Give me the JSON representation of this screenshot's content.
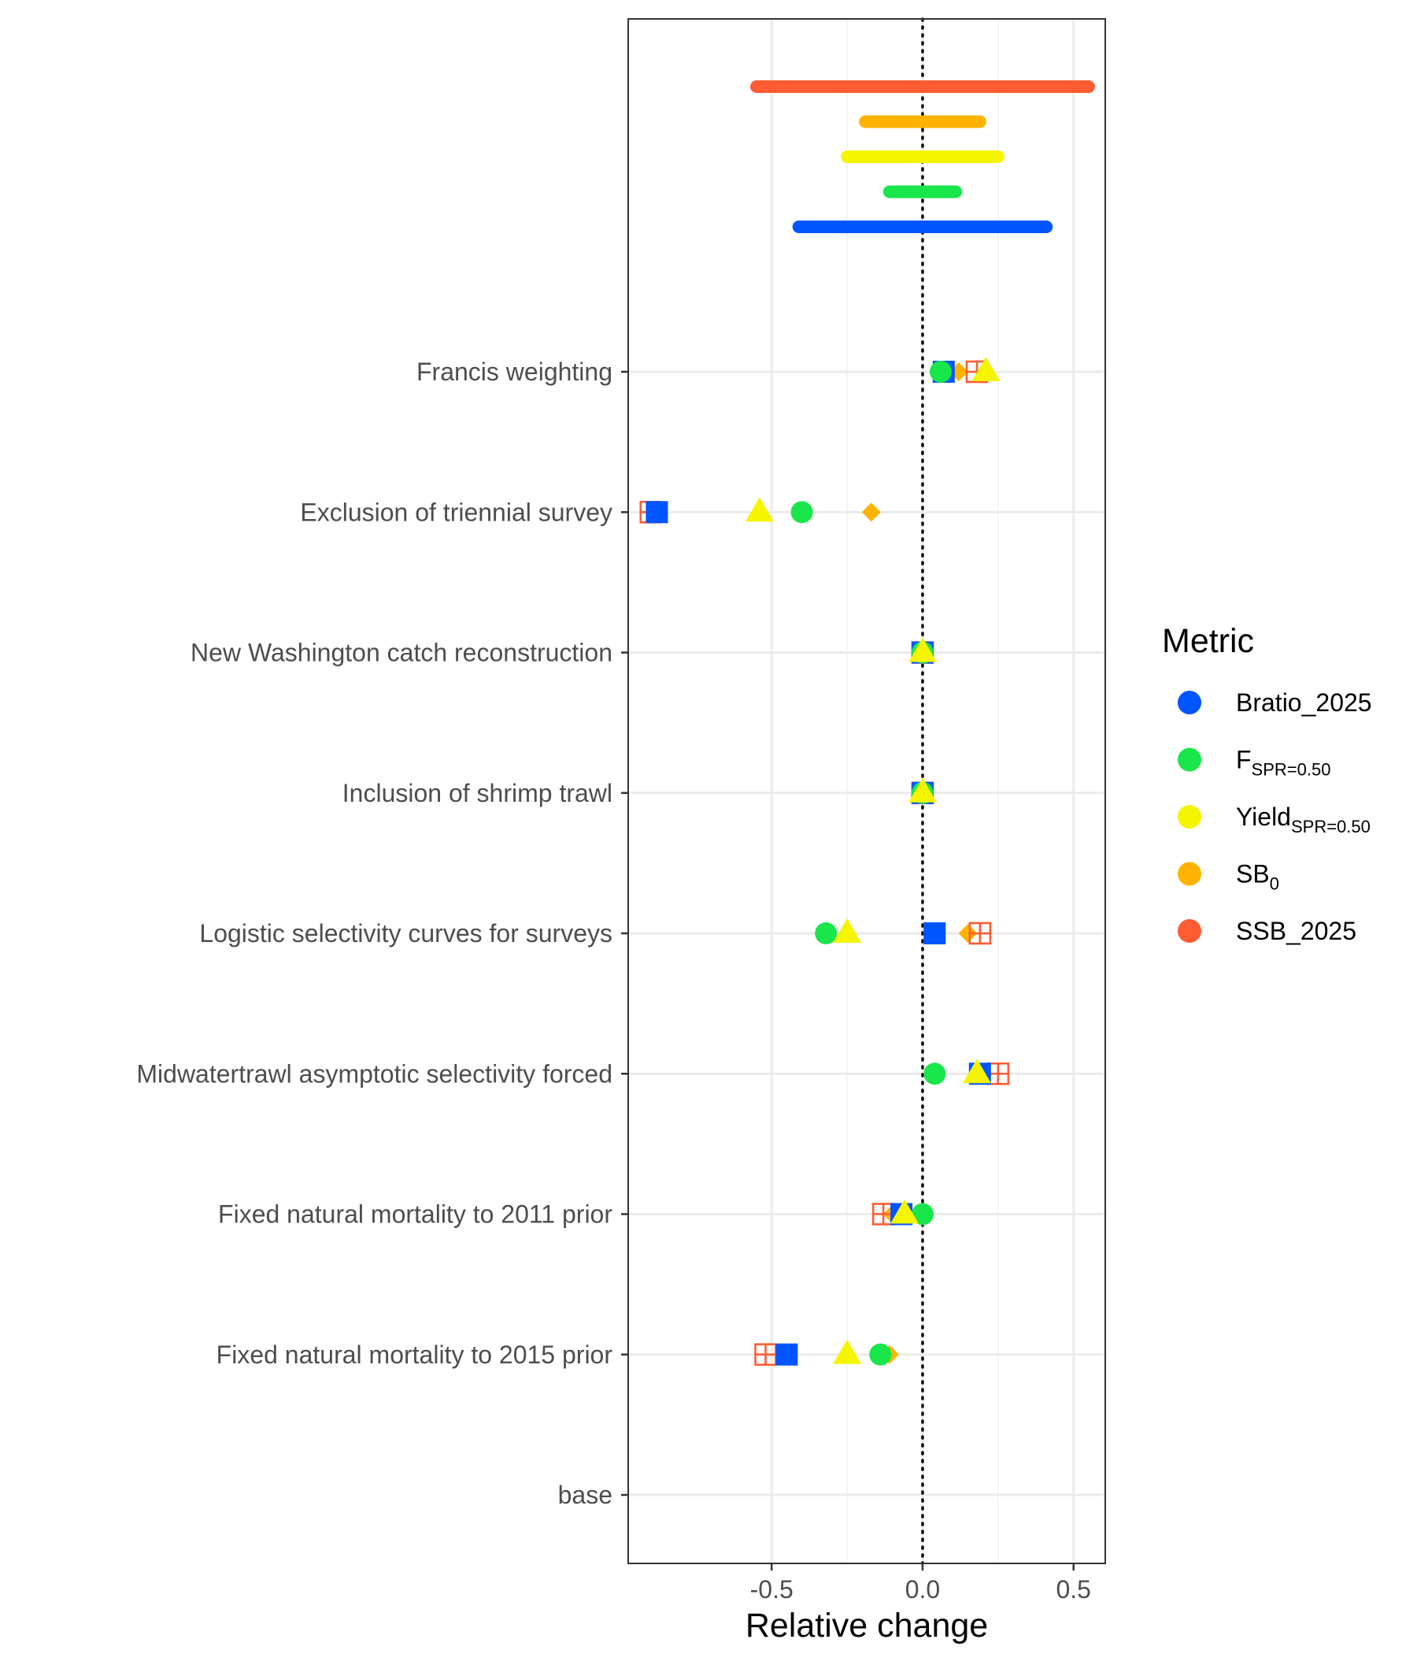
{
  "chart_data": {
    "type": "scatter",
    "xlabel": "Relative change",
    "xlim": [
      -0.975,
      0.605
    ],
    "xticks": [
      -0.5,
      0.0,
      0.5
    ],
    "xtick_labels": [
      "-0.5",
      "0.0",
      "0.5"
    ],
    "grid": true,
    "reference_line_x": 0,
    "legend_position": "right",
    "legend_title": "Metric",
    "categories": [
      "base",
      "Fixed natural mortality to 2015 prior",
      "Fixed natural mortality to 2011 prior",
      "Midwatertrawl asymptotic selectivity forced",
      "Logistic selectivity curves for surveys",
      "Inclusion of shrimp trawl",
      "New Washington catch reconstruction",
      "Exclusion of triennial survey",
      "Francis weighting"
    ],
    "series": [
      {
        "name": "Bratio_2025",
        "label_main": "Bratio_2025",
        "label_sub": "",
        "color": "#0055ff",
        "shape": "square",
        "values": [
          null,
          -0.45,
          -0.07,
          0.19,
          0.04,
          0.0,
          0.0,
          -0.88,
          0.07
        ]
      },
      {
        "name": "F_SPR=0.50",
        "label_main": "F",
        "label_sub": "SPR=0.50",
        "color": "#19e64a",
        "shape": "circle",
        "values": [
          null,
          -0.14,
          0.0,
          0.04,
          -0.32,
          0.0,
          0.0,
          -0.4,
          0.06
        ]
      },
      {
        "name": "Yield_SPR=0.50",
        "label_main": "Yield",
        "label_sub": "SPR=0.50",
        "color": "#f5f500",
        "shape": "triangle",
        "values": [
          null,
          -0.25,
          -0.06,
          0.18,
          -0.25,
          0.0,
          0.0,
          -0.54,
          0.21
        ]
      },
      {
        "name": "SB_0",
        "label_main": "SB",
        "label_sub": "0",
        "color": "#ffb300",
        "shape": "diamond",
        "values": [
          null,
          -0.11,
          -0.1,
          0.19,
          0.15,
          0.0,
          0.0,
          -0.17,
          0.12
        ]
      },
      {
        "name": "SSB_2025",
        "label_main": "SSB_2025",
        "label_sub": "",
        "color": "#ff5c33",
        "shape": "boxplus",
        "values": [
          null,
          -0.52,
          -0.13,
          0.25,
          0.19,
          0.0,
          0.0,
          -0.9,
          0.18
        ]
      }
    ],
    "ranges": [
      {
        "series": "SSB_2025",
        "min": -0.55,
        "max": 0.55
      },
      {
        "series": "SB_0",
        "min": -0.19,
        "max": 0.19
      },
      {
        "series": "Yield_SPR=0.50",
        "min": -0.25,
        "max": 0.25
      },
      {
        "series": "F_SPR=0.50",
        "min": -0.11,
        "max": 0.11
      },
      {
        "series": "Bratio_2025",
        "min": -0.41,
        "max": 0.41
      }
    ]
  }
}
